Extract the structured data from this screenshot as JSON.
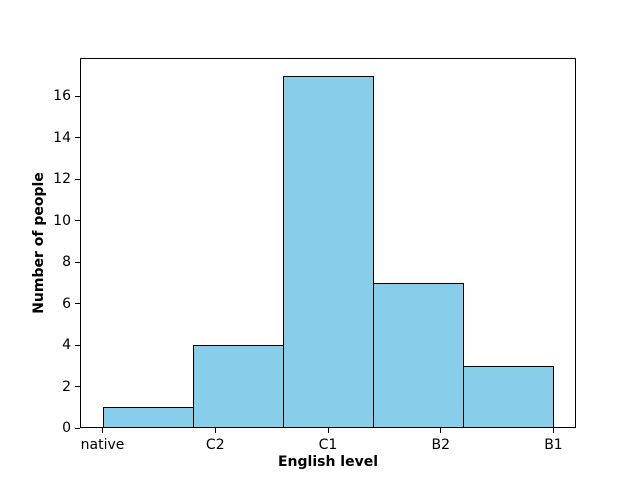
{
  "figure": {
    "background": "#ffffff"
  },
  "chart_data": {
    "type": "bar",
    "subtype": "histogram",
    "title": "",
    "xlabel": "English level",
    "ylabel": "Number of people",
    "categories": [
      "native",
      "C2",
      "C1",
      "B2",
      "B1"
    ],
    "category_positions": [
      0,
      1,
      2,
      3,
      4
    ],
    "bin_edges": [
      0,
      0.8,
      1.6,
      2.4,
      3.2,
      4.0
    ],
    "values": [
      1,
      4,
      17,
      7,
      3
    ],
    "yticks": [
      0,
      2,
      4,
      6,
      8,
      10,
      12,
      14,
      16
    ],
    "xlim": [
      -0.2,
      4.2
    ],
    "ylim": [
      0,
      17.85
    ],
    "grid": false,
    "legend_position": "none",
    "bar_fill_color": "#87ceeb",
    "bar_edge_color": "#000000",
    "axis_color": "#000000",
    "text_color": "#000000"
  }
}
